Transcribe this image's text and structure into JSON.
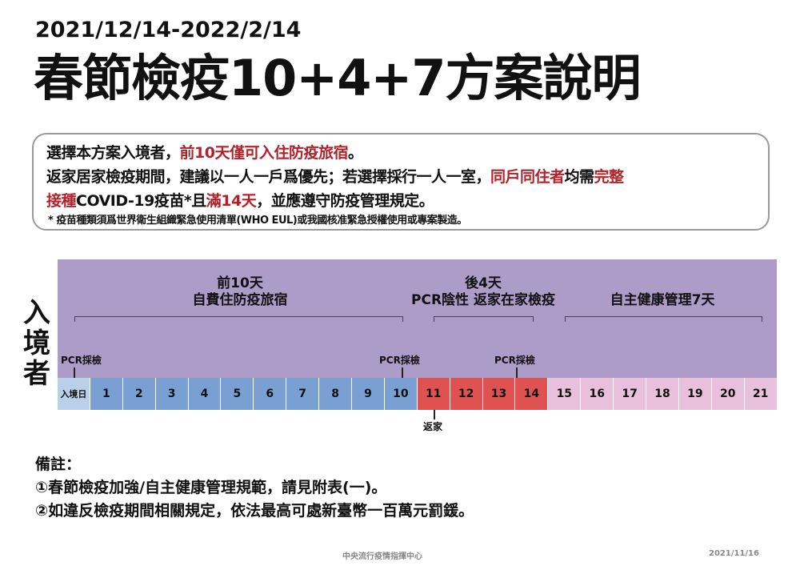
{
  "date_range": "2021/12/14-2022/2/14",
  "title": "春節檢疫10+4+7方案說明",
  "notice": {
    "line1": [
      {
        "t": "選擇本方案入境者，",
        "red": false
      },
      {
        "t": "前10天僅可入住防疫旅宿",
        "red": true
      },
      {
        "t": "。",
        "red": false
      }
    ],
    "line2": [
      {
        "t": "返家居家檢疫期間，建議以一人一戶爲優先；若選擇採行一人一室，",
        "red": false
      },
      {
        "t": "同戶同住者",
        "red": true
      },
      {
        "t": "均需",
        "red": false
      },
      {
        "t": "完整",
        "red": true
      }
    ],
    "line3": [
      {
        "t": "接種",
        "red": true
      },
      {
        "t": "COVID-19疫苗*且",
        "red": false
      },
      {
        "t": "滿14天",
        "red": true
      },
      {
        "t": "，並應遵守防疫管理規定。",
        "red": false
      }
    ],
    "footnote": "* 疫苗種類須爲世界衛生組織緊急使用清單(WHO EUL)或我國核准緊急授權使用或專案製造。"
  },
  "side_label": "入境者",
  "phases": {
    "p1": {
      "line1": "前10天",
      "line2": "自費住防疫旅宿"
    },
    "p2": {
      "line1": "後4天",
      "line2": "PCR陰性 返家在家檢疫"
    },
    "p3": {
      "line1": "自主健康管理7天"
    }
  },
  "pcr_label": "PCR採檢",
  "return_home": "返家",
  "cells": [
    {
      "label": "入境日",
      "color": "#b9d0e8"
    },
    {
      "label": "1",
      "color": "#7aa0d3"
    },
    {
      "label": "2",
      "color": "#7aa0d3"
    },
    {
      "label": "3",
      "color": "#7aa0d3"
    },
    {
      "label": "4",
      "color": "#7aa0d3"
    },
    {
      "label": "5",
      "color": "#7aa0d3"
    },
    {
      "label": "6",
      "color": "#7aa0d3"
    },
    {
      "label": "7",
      "color": "#7aa0d3"
    },
    {
      "label": "8",
      "color": "#7aa0d3"
    },
    {
      "label": "9",
      "color": "#7aa0d3"
    },
    {
      "label": "10",
      "color": "#7aa0d3"
    },
    {
      "label": "11",
      "color": "#e05252"
    },
    {
      "label": "12",
      "color": "#e05252"
    },
    {
      "label": "13",
      "color": "#e05252"
    },
    {
      "label": "14",
      "color": "#e05252"
    },
    {
      "label": "15",
      "color": "#e8c0dc"
    },
    {
      "label": "16",
      "color": "#e8c0dc"
    },
    {
      "label": "17",
      "color": "#e8c0dc"
    },
    {
      "label": "18",
      "color": "#e8c0dc"
    },
    {
      "label": "19",
      "color": "#e8c0dc"
    },
    {
      "label": "20",
      "color": "#e8c0dc"
    },
    {
      "label": "21",
      "color": "#e8c0dc"
    }
  ],
  "colors": {
    "band": "#ad9bc8",
    "highlight": "#b0232a"
  },
  "remarks": {
    "heading": "備註：",
    "item1": "①春節檢疫加強/自主健康管理規範，請見附表(一)。",
    "item2": "②如違反檢疫期間相關規定，依法最高可處新臺幣一百萬元罰鍰。"
  },
  "footer": {
    "org": "中央流行疫情指揮中心",
    "date": "2021/11/16"
  }
}
